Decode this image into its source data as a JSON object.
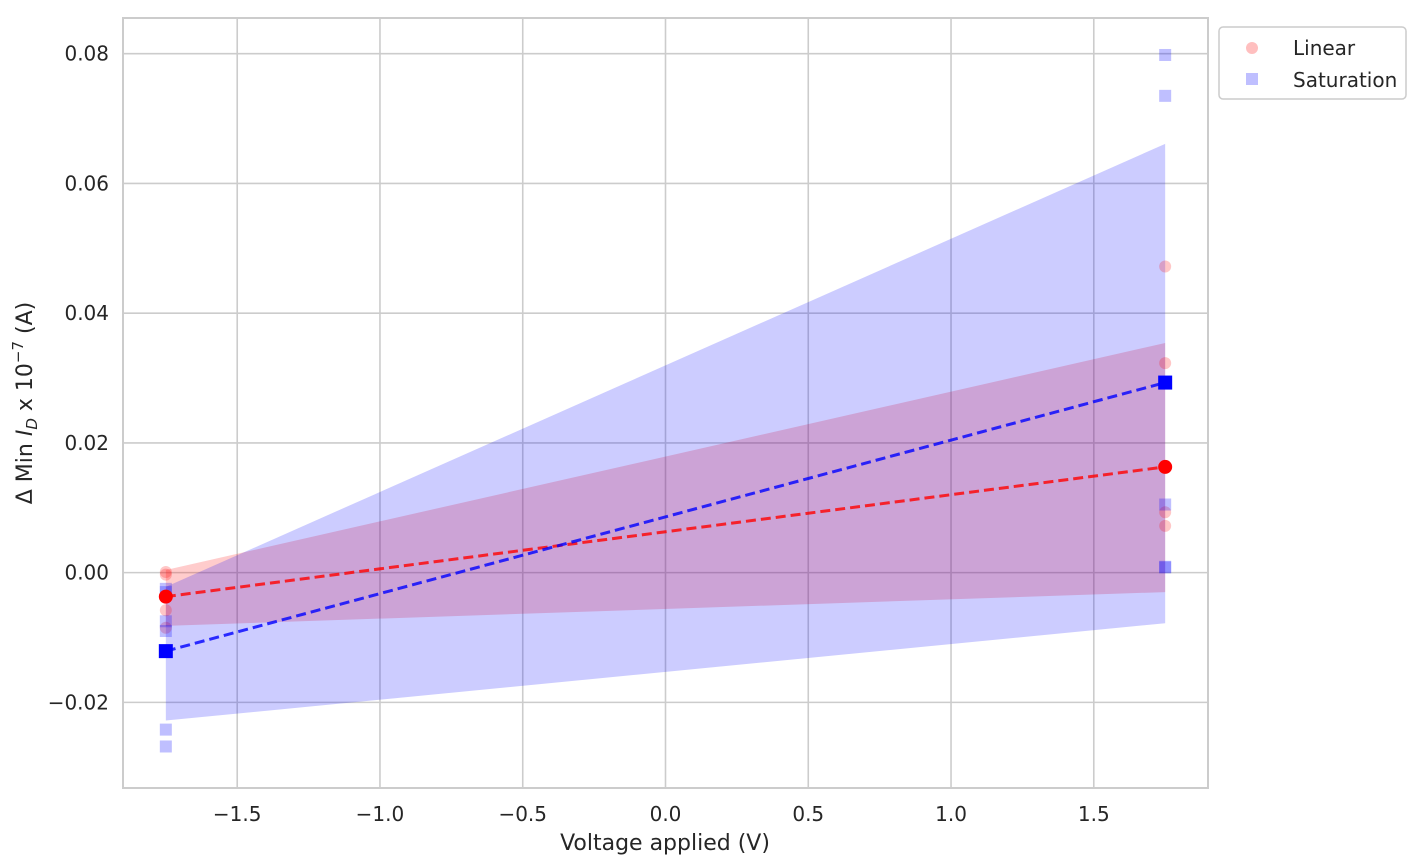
{
  "chart_data": {
    "type": "scatter",
    "title": "",
    "xlabel": "Voltage applied (V)",
    "ylabel": {
      "prefix": "Δ Min ",
      "var": "I",
      "sub": "D",
      "mid": " x 10",
      "sup": "−7",
      "suffix": " (A)"
    },
    "xlim": [
      -1.9,
      1.9
    ],
    "ylim": [
      -0.0332,
      0.0855
    ],
    "xticks": [
      -1.5,
      -1.0,
      -0.5,
      0.0,
      0.5,
      1.0,
      1.5
    ],
    "xtick_labels": [
      "−1.5",
      "−1.0",
      "−0.5",
      "0.0",
      "0.5",
      "1.0",
      "1.5"
    ],
    "yticks": [
      -0.02,
      0.0,
      0.02,
      0.04,
      0.06,
      0.08
    ],
    "ytick_labels": [
      "−0.02",
      "0.00",
      "0.02",
      "0.04",
      "0.06",
      "0.08"
    ],
    "grid": true,
    "legend_position": "outside-top-right",
    "series": [
      {
        "name": "Linear",
        "marker": "circle",
        "color": "#ff0000",
        "raw_points": [
          [
            -1.75,
            0.0001
          ],
          [
            -1.75,
            -0.0003
          ],
          [
            -1.75,
            -0.0058
          ],
          [
            -1.75,
            -0.0085
          ],
          [
            1.75,
            0.0472
          ],
          [
            1.75,
            0.0323
          ],
          [
            1.75,
            0.0093
          ],
          [
            1.75,
            0.0072
          ]
        ],
        "means": [
          [
            -1.75,
            -0.0037
          ],
          [
            1.75,
            0.0163
          ]
        ],
        "fit_line": [
          [
            -1.75,
            -0.0037
          ],
          [
            1.75,
            0.0163
          ]
        ],
        "ci_band": [
          [
            -1.75,
            -0.0082,
            0.0004
          ],
          [
            1.75,
            -0.003,
            0.0354
          ]
        ]
      },
      {
        "name": "Saturation",
        "marker": "square",
        "color": "#0000ff",
        "raw_points": [
          [
            -1.75,
            -0.0025
          ],
          [
            -1.75,
            -0.003
          ],
          [
            -1.75,
            -0.0075
          ],
          [
            -1.75,
            -0.009
          ],
          [
            -1.75,
            -0.0242
          ],
          [
            -1.75,
            -0.0268
          ],
          [
            1.75,
            0.0798
          ],
          [
            1.75,
            0.0735
          ],
          [
            1.75,
            0.0105
          ],
          [
            1.75,
            0.0009
          ],
          [
            1.75,
            0.0008
          ]
        ],
        "means": [
          [
            -1.75,
            -0.0121
          ],
          [
            1.75,
            0.0293
          ]
        ],
        "fit_line": [
          [
            -1.75,
            -0.0121
          ],
          [
            1.75,
            0.0293
          ]
        ],
        "ci_band": [
          [
            -1.75,
            -0.0228,
            -0.0022
          ],
          [
            1.75,
            -0.0078,
            0.0661
          ]
        ]
      }
    ]
  }
}
